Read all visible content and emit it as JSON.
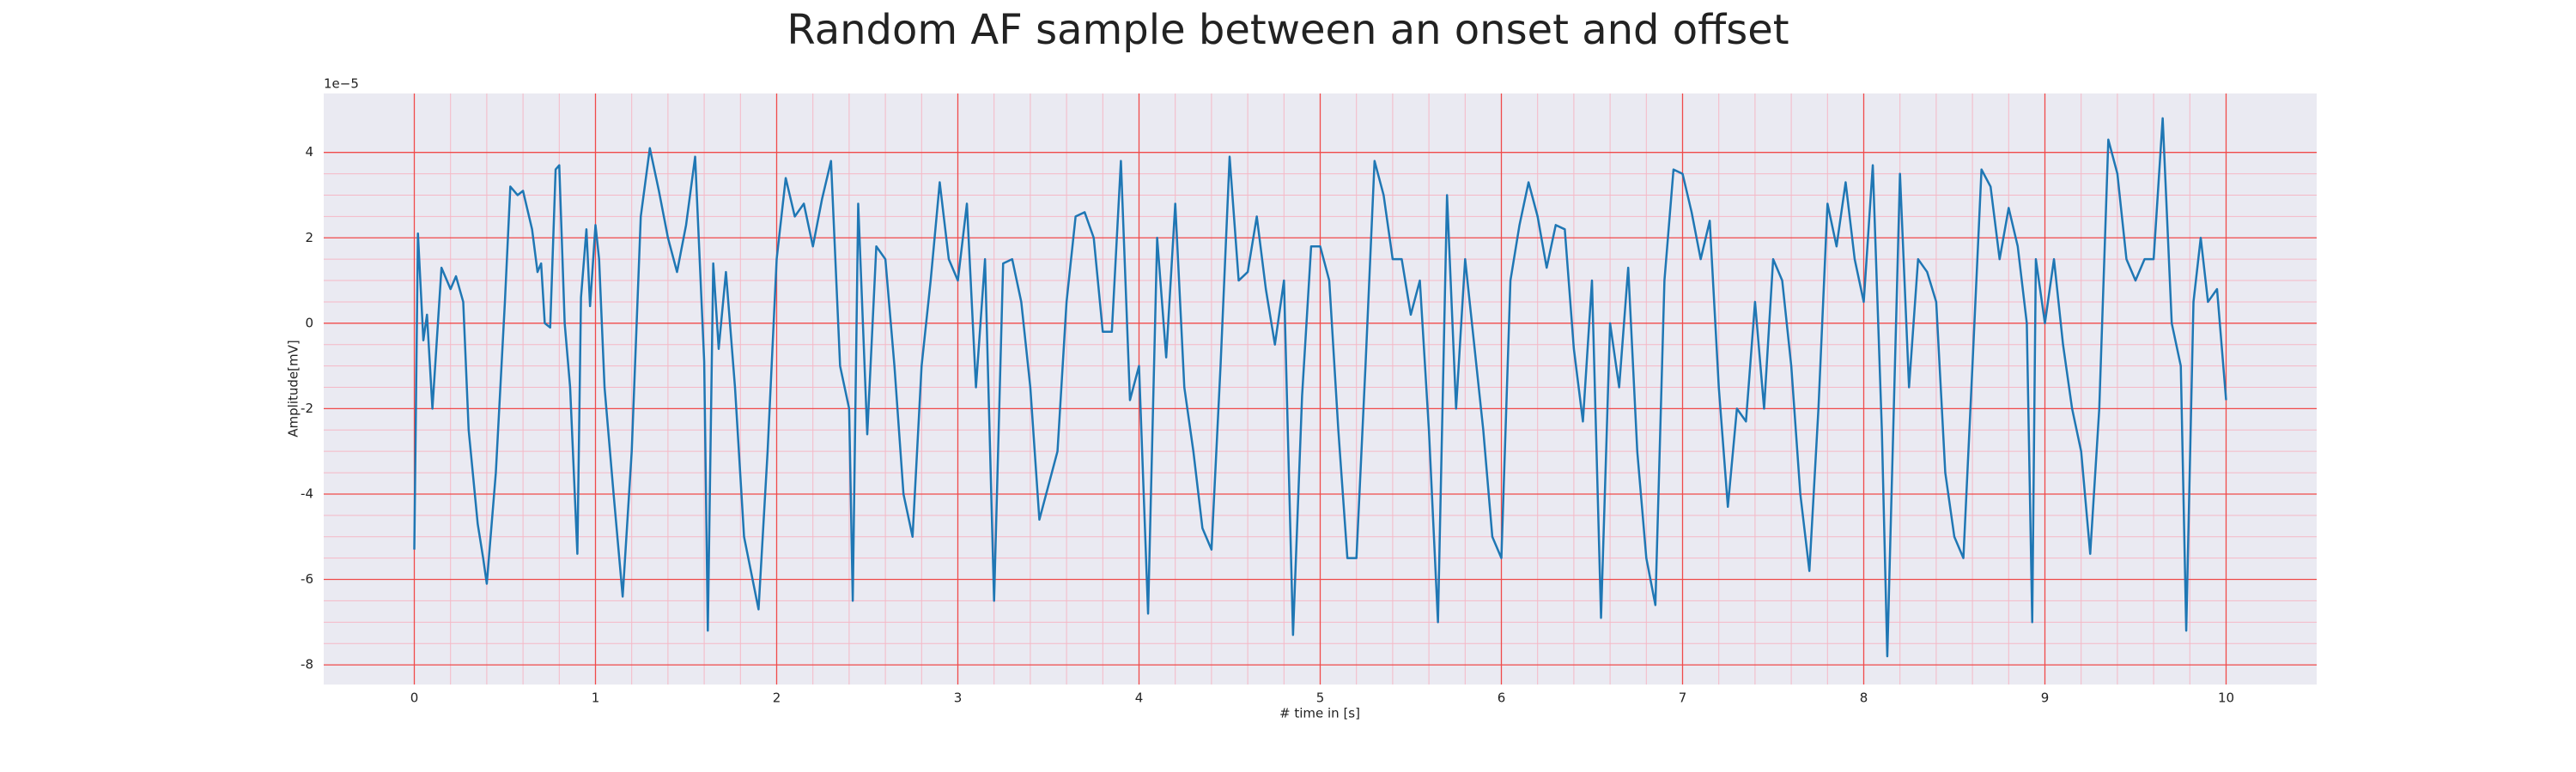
{
  "chart_data": {
    "type": "line",
    "title": "Random AF sample between an onset and offset",
    "xlabel": "# time in [s]",
    "ylabel": "Amplitude[mV]",
    "y_offset_label": "1e−5",
    "xlim": [
      -0.5,
      10.5
    ],
    "ylim": [
      -8.46,
      5.38
    ],
    "xticks": [
      0,
      1,
      2,
      3,
      4,
      5,
      6,
      7,
      8,
      9,
      10
    ],
    "yticks": [
      -8,
      -6,
      -4,
      -2,
      0,
      2,
      4
    ],
    "grid": true,
    "minor_grid": true,
    "series": [
      {
        "color": "#1f77b4",
        "x": [
          0,
          0.02,
          0.05,
          0.07,
          0.1,
          0.15,
          0.2,
          0.23,
          0.27,
          0.3,
          0.35,
          0.38,
          0.4,
          0.45,
          0.5,
          0.53,
          0.57,
          0.6,
          0.65,
          0.68,
          0.7,
          0.72,
          0.75,
          0.78,
          0.8,
          0.83,
          0.86,
          0.9,
          0.92,
          0.95,
          0.97,
          1.0,
          1.02,
          1.05,
          1.1,
          1.15,
          1.2,
          1.25,
          1.3,
          1.35,
          1.4,
          1.45,
          1.5,
          1.55,
          1.6,
          1.62,
          1.65,
          1.68,
          1.72,
          1.77,
          1.82,
          1.9,
          1.95,
          2.0,
          2.05,
          2.1,
          2.15,
          2.2,
          2.25,
          2.3,
          2.35,
          2.4,
          2.42,
          2.45,
          2.5,
          2.55,
          2.6,
          2.65,
          2.7,
          2.75,
          2.8,
          2.85,
          2.9,
          2.95,
          3.0,
          3.05,
          3.1,
          3.15,
          3.2,
          3.25,
          3.3,
          3.35,
          3.4,
          3.45,
          3.55,
          3.6,
          3.65,
          3.7,
          3.75,
          3.8,
          3.85,
          3.9,
          3.95,
          4.0,
          4.05,
          4.1,
          4.15,
          4.2,
          4.25,
          4.3,
          4.35,
          4.4,
          4.45,
          4.5,
          4.55,
          4.6,
          4.65,
          4.7,
          4.75,
          4.8,
          4.85,
          4.9,
          4.95,
          5.0,
          5.05,
          5.1,
          5.15,
          5.2,
          5.25,
          5.3,
          5.35,
          5.4,
          5.45,
          5.5,
          5.55,
          5.6,
          5.65,
          5.7,
          5.75,
          5.8,
          5.85,
          5.9,
          5.95,
          6.0,
          6.05,
          6.1,
          6.15,
          6.2,
          6.25,
          6.3,
          6.35,
          6.4,
          6.45,
          6.5,
          6.55,
          6.6,
          6.65,
          6.7,
          6.75,
          6.8,
          6.85,
          6.9,
          6.95,
          7.0,
          7.05,
          7.1,
          7.15,
          7.2,
          7.25,
          7.3,
          7.35,
          7.4,
          7.45,
          7.5,
          7.55,
          7.6,
          7.65,
          7.7,
          7.75,
          7.8,
          7.85,
          7.9,
          7.95,
          8.0,
          8.05,
          8.1,
          8.13,
          8.2,
          8.25,
          8.3,
          8.35,
          8.4,
          8.45,
          8.5,
          8.55,
          8.6,
          8.65,
          8.7,
          8.75,
          8.8,
          8.85,
          8.9,
          8.93,
          8.95,
          9.0,
          9.05,
          9.1,
          9.15,
          9.2,
          9.25,
          9.3,
          9.35,
          9.4,
          9.45,
          9.5,
          9.55,
          9.6,
          9.65,
          9.7,
          9.75,
          9.78,
          9.82,
          9.86,
          9.9,
          9.95,
          10.0
        ],
        "values": [
          -5.3,
          2.1,
          -0.4,
          0.2,
          -2.0,
          1.3,
          0.8,
          1.1,
          0.5,
          -2.5,
          -4.7,
          -5.5,
          -6.1,
          -3.5,
          0.5,
          3.2,
          3.0,
          3.1,
          2.2,
          1.2,
          1.4,
          0,
          -0.1,
          3.6,
          3.7,
          0,
          -1.5,
          -5.4,
          0.6,
          2.2,
          0.4,
          2.3,
          1.5,
          -1.5,
          -4,
          -6.4,
          -3,
          2.5,
          4.1,
          3.1,
          2,
          1.2,
          2.3,
          3.9,
          -0.9,
          -7.2,
          1.4,
          -0.6,
          1.2,
          -1.5,
          -5,
          -6.7,
          -3,
          1.5,
          3.4,
          2.5,
          2.8,
          1.8,
          2.9,
          3.8,
          -1.0,
          -2,
          -6.5,
          2.8,
          -2.6,
          1.8,
          1.5,
          -1,
          -4,
          -5,
          -1,
          1,
          3.3,
          1.5,
          1.0,
          2.8,
          -1.5,
          1.5,
          -6.5,
          1.4,
          1.5,
          0.5,
          -1.5,
          -4.6,
          -3,
          0.5,
          2.5,
          2.6,
          2.0,
          -0.2,
          -0.2,
          3.8,
          -1.8,
          -1,
          -6.8,
          2.0,
          -0.8,
          2.8,
          -1.5,
          -3.0,
          -4.8,
          -5.3,
          -1,
          3.9,
          1.0,
          1.2,
          2.5,
          0.8,
          -0.5,
          1.0,
          -7.3,
          -1.7,
          1.8,
          1.8,
          1.0,
          -2.5,
          -5.5,
          -5.5,
          -1,
          3.8,
          3.0,
          1.5,
          1.5,
          0.2,
          1.0,
          -2.5,
          -7.0,
          3.0,
          -2.0,
          1.5,
          -0.5,
          -2.5,
          -5,
          -5.5,
          1,
          2.3,
          3.3,
          2.5,
          1.3,
          2.3,
          2.2,
          -0.6,
          -2.3,
          1.0,
          -6.9,
          0,
          -1.5,
          1.3,
          -3.0,
          -5.5,
          -6.6,
          1.0,
          3.6,
          3.5,
          2.6,
          1.5,
          2.4,
          -1.5,
          -4.3,
          -2,
          -2.3,
          0.5,
          -2.0,
          1.5,
          1.0,
          -1.0,
          -4,
          -5.8,
          -2,
          2.8,
          1.8,
          3.3,
          1.5,
          0.5,
          3.7,
          -2.5,
          -7.8,
          3.5,
          -1.5,
          1.5,
          1.2,
          0.5,
          -3.5,
          -5.0,
          -5.5,
          -1,
          3.6,
          3.2,
          1.5,
          2.7,
          1.8,
          0,
          -7,
          1.5,
          0,
          1.5,
          -0.5,
          -2,
          -3,
          -5.4,
          -2,
          4.3,
          3.5,
          1.5,
          1.0,
          1.5,
          1.5,
          4.8,
          0,
          -1.0,
          -7.2,
          0.5,
          2.0,
          0.5,
          0.8,
          -1.8
        ]
      }
    ]
  }
}
